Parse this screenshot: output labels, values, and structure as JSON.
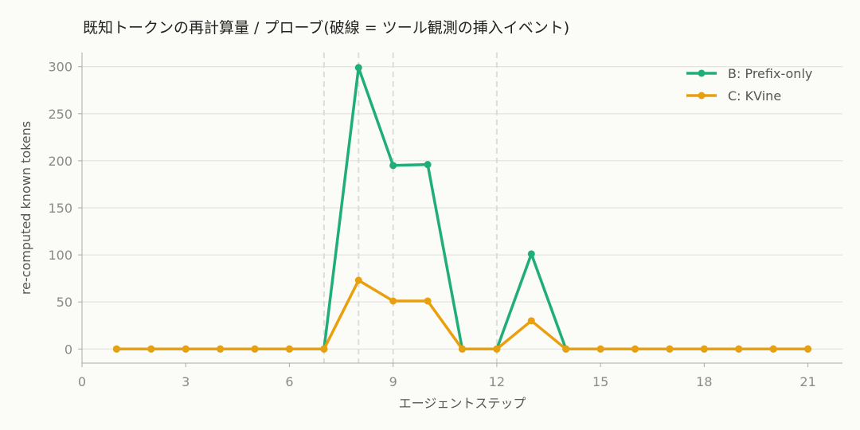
{
  "chart_data": {
    "type": "line",
    "title": "既知トークンの再計算量 / プローブ(破線 = ツール観測の挿入イベント)",
    "xlabel": "エージェントステップ",
    "ylabel": "re-computed known tokens",
    "xlim": [
      0,
      22
    ],
    "ylim": [
      -15,
      315
    ],
    "xticks": [
      0,
      3,
      6,
      9,
      12,
      15,
      18,
      21
    ],
    "yticks": [
      0,
      50,
      100,
      150,
      200,
      250,
      300
    ],
    "grid": "horizontal",
    "legend": "top-right",
    "event_lines": [
      7,
      8,
      9,
      12
    ],
    "x": [
      1,
      2,
      3,
      4,
      5,
      6,
      7,
      8,
      9,
      10,
      11,
      12,
      13,
      14,
      15,
      16,
      17,
      18,
      19,
      20,
      21
    ],
    "series": [
      {
        "name": "B: Prefix-only",
        "color": "#1fae78",
        "values": [
          0,
          0,
          0,
          0,
          0,
          0,
          0,
          299,
          195,
          196,
          0,
          0,
          101,
          0,
          0,
          0,
          0,
          0,
          0,
          0,
          0
        ]
      },
      {
        "name": "C: KVine",
        "color": "#e9a00e",
        "values": [
          0,
          0,
          0,
          0,
          0,
          0,
          0,
          73,
          51,
          51,
          0,
          0,
          30,
          0,
          0,
          0,
          0,
          0,
          0,
          0,
          0
        ]
      }
    ]
  }
}
